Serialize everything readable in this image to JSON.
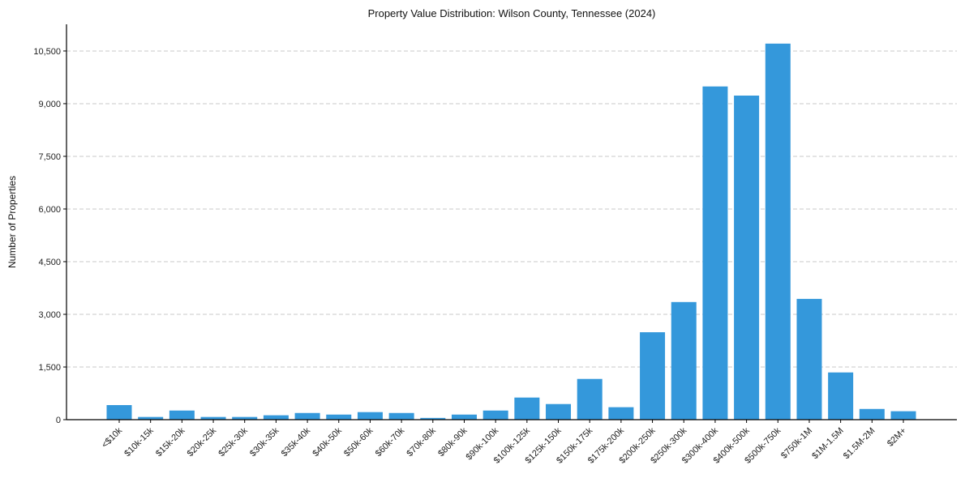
{
  "chart_data": {
    "type": "bar",
    "title": "Property Value Distribution: Wilson County, Tennessee (2024)",
    "xlabel": "",
    "ylabel": "Number of Properties",
    "ylim": [
      0,
      11260
    ],
    "yticks": [
      0,
      1500,
      3000,
      4500,
      6000,
      7500,
      9000,
      10500
    ],
    "ytick_labels": [
      "0",
      "1,500",
      "3,000",
      "4,500",
      "6,000",
      "7,500",
      "9,000",
      "10,500"
    ],
    "grid": "y-dashed",
    "bar_color": "#3498db",
    "categories": [
      "<$10k",
      "$10k-15k",
      "$15k-20k",
      "$20k-25k",
      "$25k-30k",
      "$30k-35k",
      "$35k-40k",
      "$40k-50k",
      "$50k-60k",
      "$60k-70k",
      "$70k-80k",
      "$80k-90k",
      "$90k-100k",
      "$100k-125k",
      "$125k-150k",
      "$150k-175k",
      "$175k-200k",
      "$200k-250k",
      "$250k-300k",
      "$300k-400k",
      "$400k-500k",
      "$500k-750k",
      "$750k-1M",
      "$1M-1.5M",
      "$1.5M-2M",
      "$2M+"
    ],
    "values": [
      415,
      77,
      260,
      77,
      77,
      125,
      190,
      145,
      215,
      190,
      50,
      145,
      260,
      630,
      445,
      1160,
      355,
      2490,
      3350,
      9490,
      9230,
      10710,
      3440,
      1345,
      305,
      240
    ]
  }
}
